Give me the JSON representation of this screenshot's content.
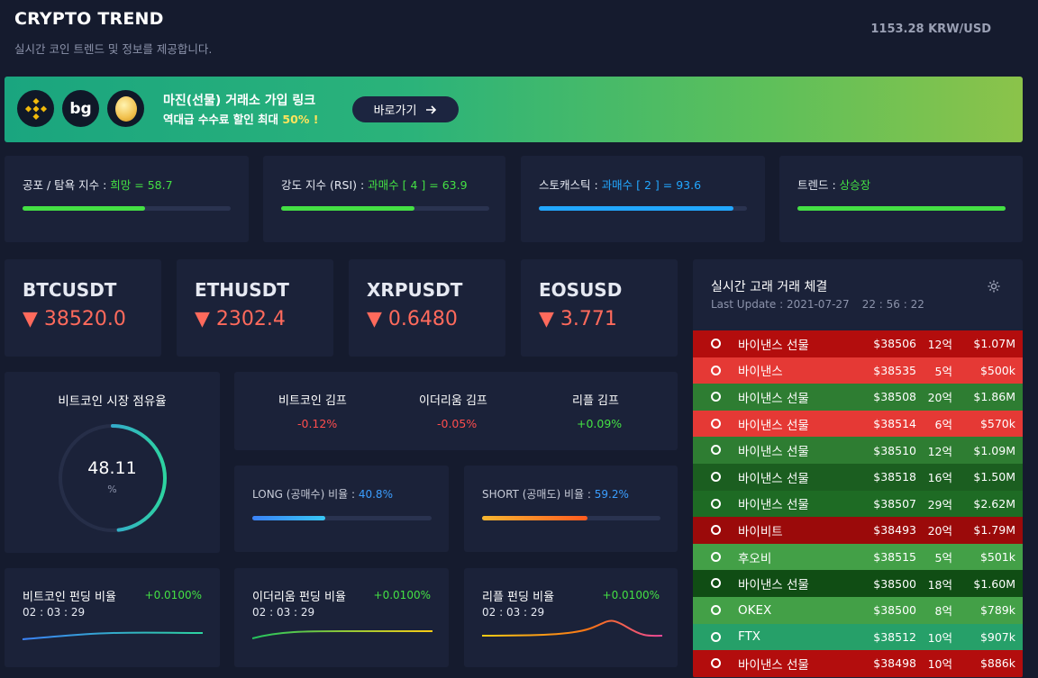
{
  "header": {
    "title": "CRYPTO TREND",
    "subtitle": "실시간 코인 트렌드 및 정보를 제공합니다.",
    "rate": "1153.28 KRW/USD"
  },
  "banner": {
    "line1": "마진(선물) 거래소 가입 링크",
    "line2_prefix": "역대급 수수료 할인 최대 ",
    "line2_highlight": "50% !",
    "button_label": "바로가기",
    "logos": [
      "binance-logo",
      "bitget-logo",
      "bybit-coin-logo"
    ]
  },
  "indicators": [
    {
      "label": "공포 / 탐욕 지수 : ",
      "status": "희망",
      "value_text": " = 58.7",
      "value": 58.7,
      "color": "#44e044"
    },
    {
      "label": "강도 지수 (RSI) : ",
      "status": "과매수",
      "value_text": " [ 4 ] = 63.9",
      "value": 63.9,
      "color": "#44e044"
    },
    {
      "label": "스토캐스틱 : ",
      "status": "과매수",
      "value_text": " [ 2 ] = 93.6",
      "value": 93.6,
      "color": "#22a7ff"
    },
    {
      "label": "트렌드 : ",
      "status": "상승장",
      "value_text": "",
      "value": 100,
      "color": "#44e044"
    }
  ],
  "tickers": [
    {
      "symbol": "BTCUSDT",
      "price": "▼ 38520.0"
    },
    {
      "symbol": "ETHUSDT",
      "price": "▼ 2302.4"
    },
    {
      "symbol": "XRPUSDT",
      "price": "▼ 0.6480"
    },
    {
      "symbol": "EOSUSD",
      "price": "▼ 3.771"
    }
  ],
  "dominance": {
    "title": "비트코인 시장 점유율",
    "value": "48.11",
    "unit": "%",
    "percent": 48.11
  },
  "kimp": [
    {
      "label": "비트코인 김프",
      "value": "-0.12%",
      "color": "#ff4d4d"
    },
    {
      "label": "이더리움 김프",
      "value": "-0.05%",
      "color": "#ff4d4d"
    },
    {
      "label": "리플 김프",
      "value": "+0.09%",
      "color": "#44e044"
    }
  ],
  "long_short": {
    "long_label": "LONG (공매수) 비율 : ",
    "long_value": "40.8%",
    "long_percent": 40.8,
    "short_label": "SHORT (공매도) 비율 : ",
    "short_value": "59.2%",
    "short_percent": 59.2
  },
  "funding": [
    {
      "label": "비트코인 펀딩 비율",
      "value": "+0.0100%",
      "timer": "02 : 03 : 29"
    },
    {
      "label": "이더리움 펀딩 비율",
      "value": "+0.0100%",
      "timer": "02 : 03 : 29"
    },
    {
      "label": "리플 펀딩 비율",
      "value": "+0.0100%",
      "timer": "02 : 03 : 29"
    }
  ],
  "whale": {
    "title": "실시간 고래 거래 체결",
    "last_update": "Last Update : 2021-07-27",
    "time": "22 : 56 : 22",
    "rows": [
      {
        "exchange": "바이낸스 선물",
        "price": "$38506",
        "amount": "12억",
        "usd": "$1.07M",
        "color": "#b30d0d"
      },
      {
        "exchange": "바이낸스",
        "price": "$38535",
        "amount": "5억",
        "usd": "$500k",
        "color": "#e53935"
      },
      {
        "exchange": "바이낸스 선물",
        "price": "$38508",
        "amount": "20억",
        "usd": "$1.86M",
        "color": "#2e7d32"
      },
      {
        "exchange": "바이낸스 선물",
        "price": "$38514",
        "amount": "6억",
        "usd": "$570k",
        "color": "#e53935"
      },
      {
        "exchange": "바이낸스 선물",
        "price": "$38510",
        "amount": "12억",
        "usd": "$1.09M",
        "color": "#2e7d32"
      },
      {
        "exchange": "바이낸스 선물",
        "price": "$38518",
        "amount": "16억",
        "usd": "$1.50M",
        "color": "#1b5e20"
      },
      {
        "exchange": "바이낸스 선물",
        "price": "$38507",
        "amount": "29억",
        "usd": "$2.62M",
        "color": "#1e6b24"
      },
      {
        "exchange": "바이비트",
        "price": "$38493",
        "amount": "20억",
        "usd": "$1.79M",
        "color": "#9b0a0a"
      },
      {
        "exchange": "후오비",
        "price": "$38515",
        "amount": "5억",
        "usd": "$501k",
        "color": "#43a047"
      },
      {
        "exchange": "바이낸스 선물",
        "price": "$38500",
        "amount": "18억",
        "usd": "$1.60M",
        "color": "#104d14"
      },
      {
        "exchange": "OKEX",
        "price": "$38500",
        "amount": "8억",
        "usd": "$789k",
        "color": "#43a047"
      },
      {
        "exchange": "FTX",
        "price": "$38512",
        "amount": "10억",
        "usd": "$907k",
        "color": "#26a069"
      },
      {
        "exchange": "바이낸스 선물",
        "price": "$38498",
        "amount": "10억",
        "usd": "$886k",
        "color": "#b30d0d"
      }
    ]
  }
}
